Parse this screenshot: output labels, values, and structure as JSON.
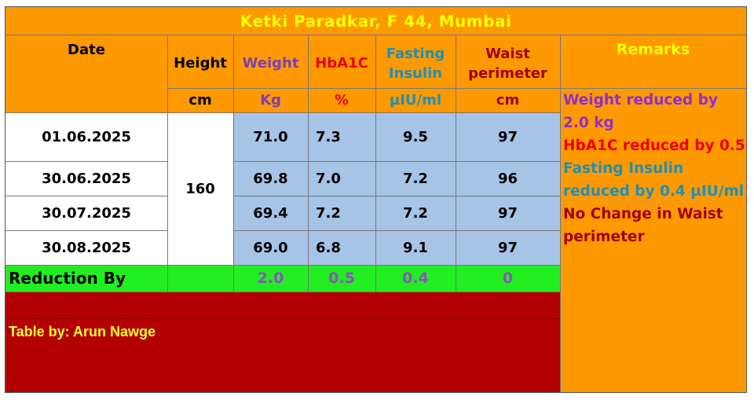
{
  "title": "Ketki Paradkar, F 44, Mumbai",
  "columns": [
    {
      "label": "Date",
      "unit": "",
      "color": "#000000"
    },
    {
      "label": "Height",
      "unit": "cm",
      "color": "#000000"
    },
    {
      "label": "Weight",
      "unit": "Kg",
      "color": "#7b3fb5"
    },
    {
      "label": "HbA1C",
      "unit": "%",
      "color": "#e60000"
    },
    {
      "label": "Fasting Insulin",
      "unit": "µIU/ml",
      "color": "#1f8fb8"
    },
    {
      "label": "Waist perimeter",
      "unit": "cm",
      "color": "#a00000"
    }
  ],
  "remarks_header": "Remarks",
  "height_value": "160",
  "rows": [
    {
      "date": "01.06.2025",
      "weight": "71.0",
      "hba1c": "7.3",
      "insulin": "9.5",
      "waist": "97"
    },
    {
      "date": "30.06.2025",
      "weight": "69.8",
      "hba1c": "7.0",
      "insulin": "7.2",
      "waist": "96"
    },
    {
      "date": "30.07.2025",
      "weight": "69.4",
      "hba1c": "7.2",
      "insulin": "7.2",
      "waist": "97"
    },
    {
      "date": "30.08.2025",
      "weight": "69.0",
      "hba1c": "6.8",
      "insulin": "9.1",
      "waist": "97"
    }
  ],
  "reduction": {
    "label": "Reduction By",
    "weight": "2.0",
    "hba1c": "0.5",
    "insulin": "0.4",
    "waist": "0"
  },
  "remarks": [
    {
      "text": "Weight reduced by 2.0 kg",
      "color": "#8e2fcf"
    },
    {
      "text": "HbA1C reduced by 0.5",
      "color": "#ee0000"
    },
    {
      "text": "Fasting Insulin reduced by 0.4 µIU/ml",
      "color": "#1f8fb8"
    },
    {
      "text": "No Change in Waist perimeter",
      "color": "#a00000"
    }
  ],
  "footer": "Table by: Arun Nawge",
  "colors": {
    "orange": "#ff9900",
    "title_yellow": "#ffff00",
    "blue_cells": "#a6c4e6",
    "green_row": "#22ee22",
    "footer_red": "#b30000",
    "reduction_text": "#9050c0"
  }
}
